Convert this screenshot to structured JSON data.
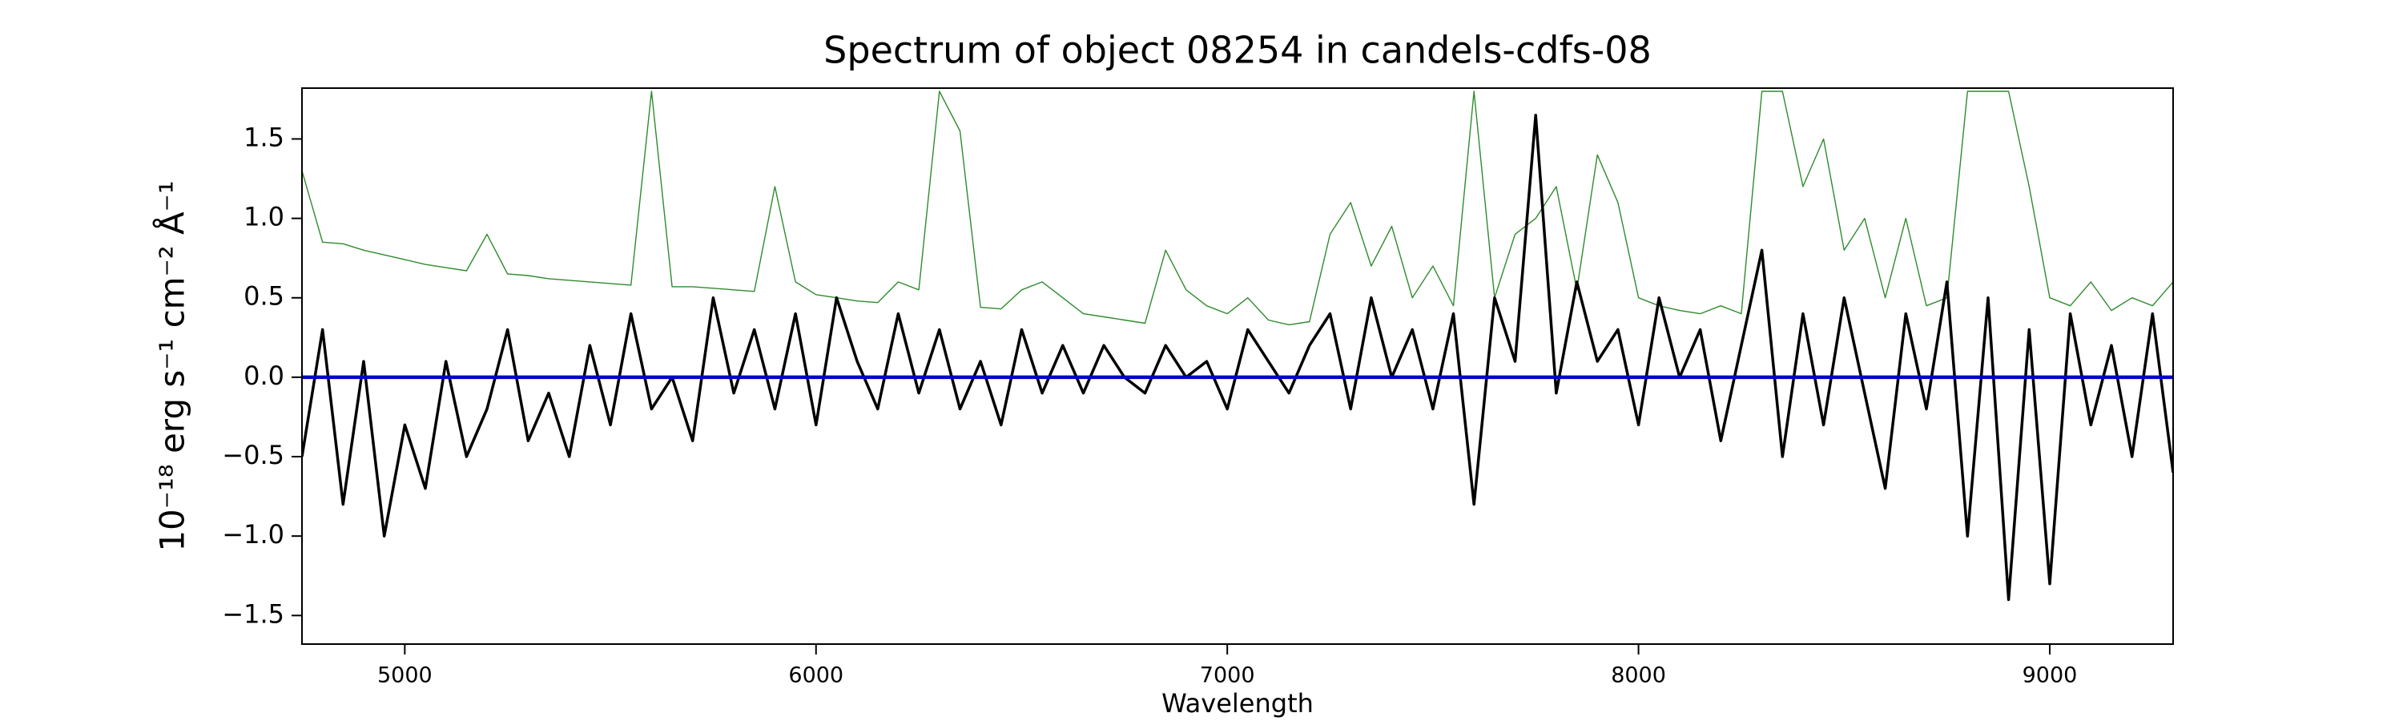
{
  "chart_data": {
    "type": "line",
    "title": "Spectrum of object 08254 in candels-cdfs-08",
    "xlabel": "Wavelength",
    "ylabel": "10⁻¹⁸ erg s⁻¹ cm⁻² Å⁻¹",
    "x": [
      4750,
      4800,
      4850,
      4900,
      4950,
      5000,
      5050,
      5100,
      5150,
      5200,
      5250,
      5300,
      5350,
      5400,
      5450,
      5500,
      5550,
      5600,
      5650,
      5700,
      5750,
      5800,
      5850,
      5900,
      5950,
      6000,
      6050,
      6100,
      6150,
      6200,
      6250,
      6300,
      6350,
      6400,
      6450,
      6500,
      6550,
      6600,
      6650,
      6700,
      6750,
      6800,
      6850,
      6900,
      6950,
      7000,
      7050,
      7100,
      7150,
      7200,
      7250,
      7300,
      7350,
      7400,
      7450,
      7500,
      7550,
      7600,
      7650,
      7700,
      7750,
      7800,
      7850,
      7900,
      7950,
      8000,
      8050,
      8100,
      8150,
      8200,
      8250,
      8300,
      8350,
      8400,
      8450,
      8500,
      8550,
      8600,
      8650,
      8700,
      8750,
      8800,
      8850,
      8900,
      8950,
      9000,
      9050,
      9100,
      9150,
      9200,
      9250,
      9300
    ],
    "series": [
      {
        "color": "#2e8b2e",
        "width": 1.4,
        "values": [
          1.3,
          0.85,
          0.84,
          0.8,
          0.77,
          0.74,
          0.71,
          0.69,
          0.67,
          0.9,
          0.65,
          0.64,
          0.62,
          0.61,
          0.6,
          0.59,
          0.58,
          1.8,
          0.57,
          0.57,
          0.56,
          0.55,
          0.54,
          1.2,
          0.6,
          0.52,
          0.5,
          0.48,
          0.47,
          0.6,
          0.55,
          1.8,
          1.55,
          0.44,
          0.43,
          0.55,
          0.6,
          0.5,
          0.4,
          0.38,
          0.36,
          0.34,
          0.8,
          0.55,
          0.45,
          0.4,
          0.5,
          0.36,
          0.33,
          0.35,
          0.9,
          1.1,
          0.7,
          0.95,
          0.5,
          0.7,
          0.45,
          1.8,
          0.5,
          0.9,
          1.0,
          1.2,
          0.55,
          1.4,
          1.1,
          0.5,
          0.45,
          0.42,
          0.4,
          0.45,
          0.4,
          1.8,
          1.8,
          1.2,
          1.5,
          0.8,
          1.0,
          0.5,
          1.0,
          0.45,
          0.5,
          1.8,
          1.8,
          1.8,
          1.2,
          0.5,
          0.45,
          0.6,
          0.42,
          0.5,
          0.45,
          0.6
        ]
      },
      {
        "color": "#000000",
        "width": 3.5,
        "values": [
          -0.5,
          0.3,
          -0.8,
          0.1,
          -1.0,
          -0.3,
          -0.7,
          0.1,
          -0.5,
          -0.2,
          0.3,
          -0.4,
          -0.1,
          -0.5,
          0.2,
          -0.3,
          0.4,
          -0.2,
          0.0,
          -0.4,
          0.5,
          -0.1,
          0.3,
          -0.2,
          0.4,
          -0.3,
          0.5,
          0.1,
          -0.2,
          0.4,
          -0.1,
          0.3,
          -0.2,
          0.1,
          -0.3,
          0.3,
          -0.1,
          0.2,
          -0.1,
          0.2,
          0.0,
          -0.1,
          0.2,
          0.0,
          0.1,
          -0.2,
          0.3,
          0.1,
          -0.1,
          0.2,
          0.4,
          -0.2,
          0.5,
          0.0,
          0.3,
          -0.2,
          0.4,
          -0.8,
          0.5,
          0.1,
          1.65,
          -0.1,
          0.6,
          0.1,
          0.3,
          -0.3,
          0.5,
          0.0,
          0.3,
          -0.4,
          0.2,
          0.8,
          -0.5,
          0.4,
          -0.3,
          0.5,
          -0.1,
          -0.7,
          0.4,
          -0.2,
          0.6,
          -1.0,
          0.5,
          -1.4,
          0.3,
          -1.3,
          0.4,
          -0.3,
          0.2,
          -0.5,
          0.4,
          -0.6
        ]
      },
      {
        "color": "#0000cc",
        "width": 4.5,
        "values": [
          0,
          0,
          0,
          0,
          0,
          0,
          0,
          0,
          0,
          0,
          0,
          0,
          0,
          0,
          0,
          0,
          0,
          0,
          0,
          0,
          0,
          0,
          0,
          0,
          0,
          0,
          0,
          0,
          0,
          0,
          0,
          0,
          0,
          0,
          0,
          0,
          0,
          0,
          0,
          0,
          0,
          0,
          0,
          0,
          0,
          0,
          0,
          0,
          0,
          0,
          0,
          0,
          0,
          0,
          0,
          0,
          0,
          0,
          0,
          0,
          0,
          0,
          0,
          0,
          0,
          0,
          0,
          0,
          0,
          0,
          0,
          0,
          0,
          0,
          0,
          0,
          0,
          0,
          0,
          0,
          0,
          0,
          0,
          0,
          0,
          0,
          0,
          0,
          0,
          0,
          0,
          0
        ]
      }
    ],
    "xlim": [
      4750,
      9300
    ],
    "ylim": [
      -1.68,
      1.82
    ],
    "xticks": [
      5000,
      6000,
      7000,
      8000,
      9000
    ],
    "yticks": [
      {
        "value": -1.5,
        "label": "−1.5"
      },
      {
        "value": -1,
        "label": "−1.0"
      },
      {
        "value": -0.5,
        "label": "−0.5"
      },
      {
        "value": 0,
        "label": "0.0"
      },
      0.5,
      {
        "value": 1,
        "label": "1.0"
      },
      1.5
    ],
    "grid": false
  }
}
